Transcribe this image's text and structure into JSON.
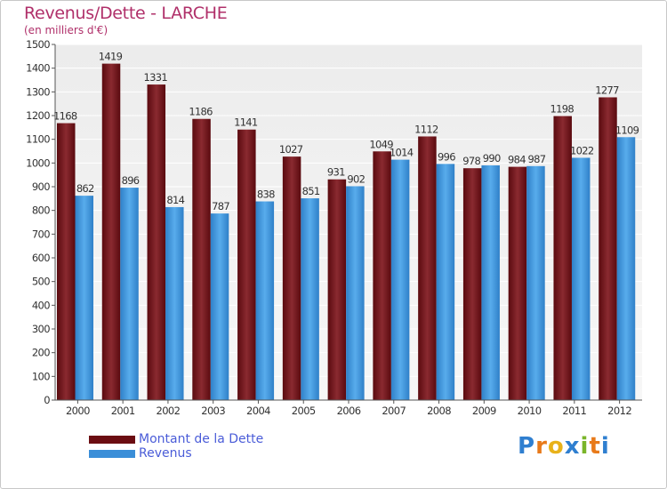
{
  "title": "Revenus/Dette - LARCHE",
  "subtitle": "(en milliers d'€)",
  "chart_data": {
    "type": "bar",
    "categories": [
      "2000",
      "2001",
      "2002",
      "2003",
      "2004",
      "2005",
      "2006",
      "2007",
      "2008",
      "2009",
      "2010",
      "2011",
      "2012"
    ],
    "series": [
      {
        "name": "Montant de la Dette",
        "values": [
          1168,
          1419,
          1331,
          1186,
          1141,
          1027,
          931,
          1049,
          1112,
          978,
          984,
          1198,
          1277
        ],
        "color": "#7a1a20"
      },
      {
        "name": "Revenus",
        "values": [
          862,
          896,
          814,
          787,
          838,
          851,
          902,
          1014,
          996,
          990,
          987,
          1022,
          1109
        ],
        "color": "#3a8ed8"
      }
    ],
    "ylim": [
      0,
      1500
    ],
    "yticks": [
      0,
      100,
      200,
      300,
      400,
      500,
      600,
      700,
      800,
      900,
      1000,
      1100,
      1200,
      1300,
      1400,
      1500
    ],
    "grid": true,
    "legend_position": "bottom-left"
  },
  "legend": {
    "items": [
      {
        "label": "Montant de la Dette",
        "color": "#6b0d12"
      },
      {
        "label": "Revenus",
        "color": "#3a8ed8"
      }
    ]
  },
  "logo": {
    "letters": [
      "P",
      "r",
      "o",
      "x",
      "i",
      "t",
      "i"
    ],
    "colors": [
      "#2f7fd0",
      "#e87a1a",
      "#e8b21a",
      "#2f7fd0",
      "#7ab52a",
      "#e87a1a",
      "#2f7fd0"
    ]
  }
}
